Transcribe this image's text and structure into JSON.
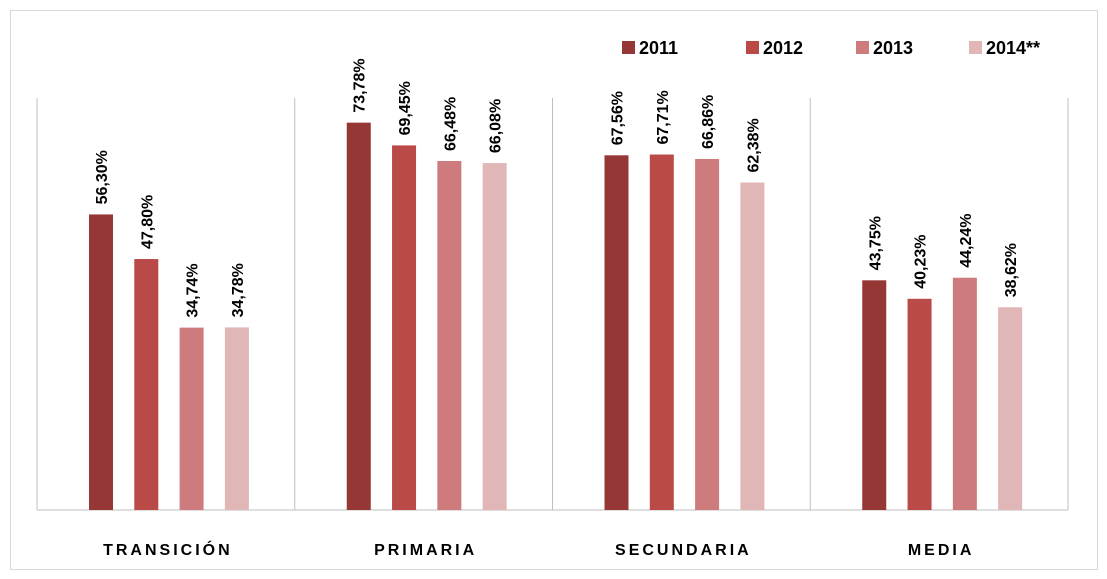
{
  "chart_data": {
    "type": "bar",
    "title": "",
    "xlabel": "",
    "ylabel": "",
    "ylim": [
      0,
      80
    ],
    "grid": false,
    "legend_position": "top-right",
    "categories": [
      "TRANSICIÓN",
      "PRIMARIA",
      "SECUNDARIA",
      "MEDIA"
    ],
    "series": [
      {
        "name": "2011",
        "color": "#953735",
        "values": [
          56.3,
          73.78,
          67.56,
          43.75
        ],
        "labels": [
          "56,30%",
          "73,78%",
          "67,56%",
          "43,75%"
        ]
      },
      {
        "name": "2012",
        "color": "#B94A48",
        "values": [
          47.8,
          69.45,
          67.71,
          40.23
        ],
        "labels": [
          "47,80%",
          "69,45%",
          "67,71%",
          "40,23%"
        ]
      },
      {
        "name": "2013",
        "color": "#CD7B7C",
        "values": [
          34.74,
          66.48,
          66.86,
          44.24
        ],
        "labels": [
          "34,74%",
          "66,48%",
          "66,86%",
          "44,24%"
        ]
      },
      {
        "name": "2014**",
        "color": "#E0B6B7",
        "values": [
          34.78,
          66.08,
          62.38,
          38.62
        ],
        "labels": [
          "34,78%",
          "66,08%",
          "62,38%",
          "38,62%"
        ]
      }
    ]
  }
}
